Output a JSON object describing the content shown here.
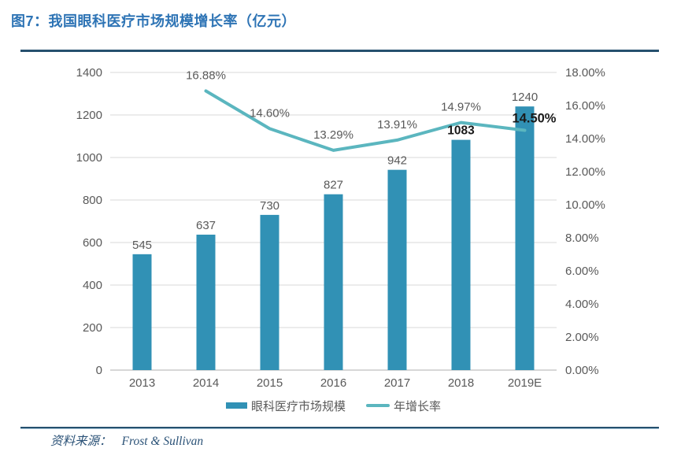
{
  "figure": {
    "title": "图7：我国眼科医疗市场规模增长率（亿元）"
  },
  "chart_data": {
    "type": "bar+line",
    "title": "我国眼科医疗市场规模增长率（亿元）",
    "categories": [
      "2013",
      "2014",
      "2015",
      "2016",
      "2017",
      "2018",
      "2019E"
    ],
    "series": [
      {
        "name": "眼科医疗市场规模",
        "type": "bar",
        "axis": "left",
        "values": [
          545,
          637,
          730,
          827,
          942,
          1083,
          1240
        ],
        "labels": [
          "545",
          "637",
          "730",
          "827",
          "942",
          "1083",
          "1240"
        ],
        "color": "#3191b5"
      },
      {
        "name": "年增长率",
        "type": "line",
        "axis": "right",
        "values": [
          null,
          16.88,
          14.6,
          13.29,
          13.91,
          14.97,
          14.5
        ],
        "labels": [
          null,
          "16.88%",
          "14.60%",
          "13.29%",
          "13.91%",
          "14.97%",
          "14.50%"
        ],
        "color": "#5bb6bf"
      }
    ],
    "left_axis": {
      "min": 0,
      "max": 1400,
      "step": 200,
      "ticks": [
        "0",
        "200",
        "400",
        "600",
        "800",
        "1000",
        "1200",
        "1400"
      ]
    },
    "right_axis": {
      "min": 0,
      "max": 18,
      "step": 2,
      "ticks": [
        "0.00%",
        "2.00%",
        "4.00%",
        "6.00%",
        "8.00%",
        "10.00%",
        "12.00%",
        "14.00%",
        "16.00%",
        "18.00%"
      ]
    },
    "emphasized_labels": [
      "1083",
      "14.50%"
    ],
    "grid": true,
    "legend_position": "bottom"
  },
  "source": {
    "prefix": "资料来源：",
    "text": "Frost & Sullivan"
  },
  "colors": {
    "title": "#2e74b5",
    "rule": "#26506e",
    "bar": "#3191b5",
    "line": "#5bb6bf",
    "tick": "#595959",
    "grid": "#d9d9d9",
    "axis": "#bfbfbf",
    "emphasis": "#1a1a1a",
    "source": "#2b5277"
  }
}
